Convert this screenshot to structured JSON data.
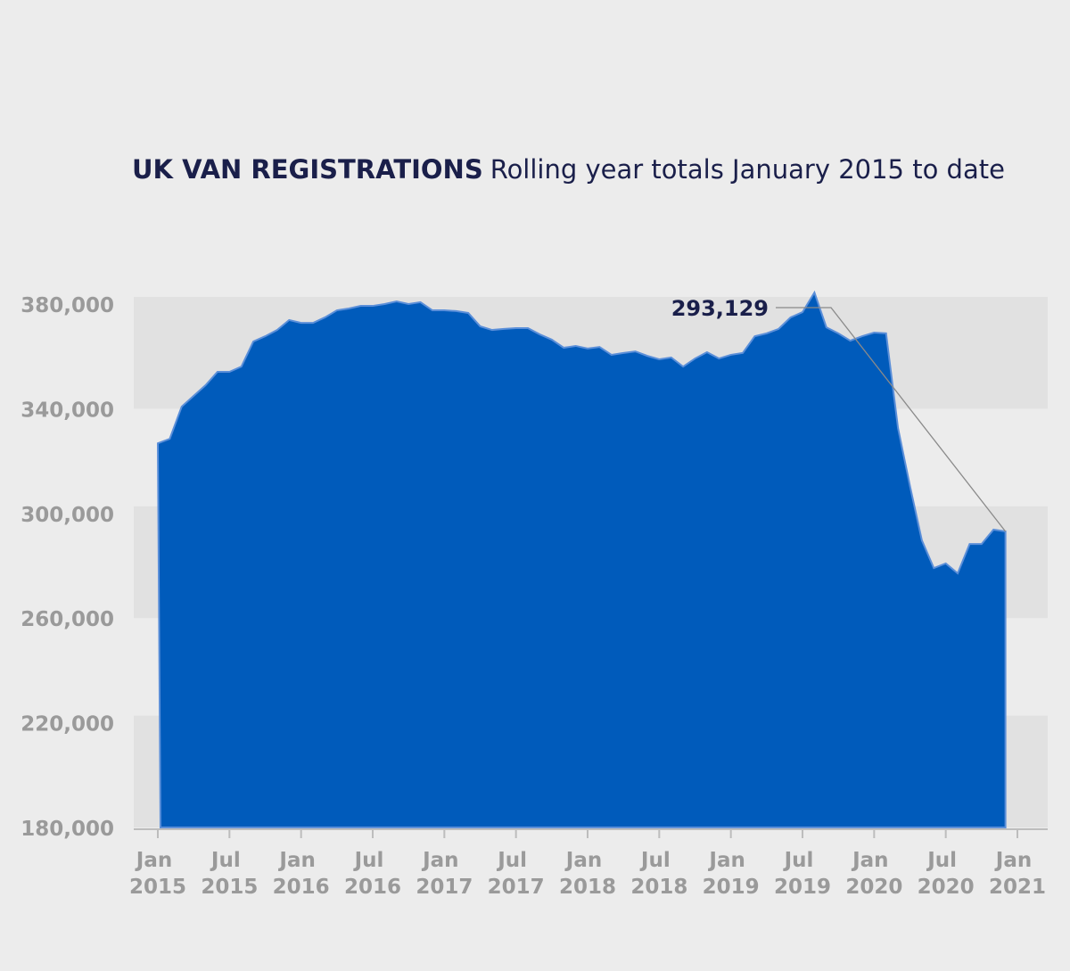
{
  "chart_data": {
    "type": "area",
    "title": "UK VAN REGISTRATIONS",
    "subtitle": "Rolling year totals January 2015 to date",
    "annotation": "293,129",
    "color": "#005bbb",
    "x": [
      "2015-01",
      "2015-02",
      "2015-03",
      "2015-04",
      "2015-05",
      "2015-06",
      "2015-07",
      "2015-08",
      "2015-09",
      "2015-10",
      "2015-11",
      "2015-12",
      "2016-01",
      "2016-02",
      "2016-03",
      "2016-04",
      "2016-05",
      "2016-06",
      "2016-07",
      "2016-08",
      "2016-09",
      "2016-10",
      "2016-11",
      "2016-12",
      "2017-01",
      "2017-02",
      "2017-03",
      "2017-04",
      "2017-05",
      "2017-06",
      "2017-07",
      "2017-08",
      "2017-09",
      "2017-10",
      "2017-11",
      "2017-12",
      "2018-01",
      "2018-02",
      "2018-03",
      "2018-04",
      "2018-05",
      "2018-06",
      "2018-07",
      "2018-08",
      "2018-09",
      "2018-10",
      "2018-11",
      "2018-12",
      "2019-01",
      "2019-02",
      "2019-03",
      "2019-04",
      "2019-05",
      "2019-06",
      "2019-07",
      "2019-08",
      "2019-09",
      "2019-10",
      "2019-11",
      "2019-12",
      "2020-01",
      "2020-02",
      "2020-03",
      "2020-04",
      "2020-05",
      "2020-06",
      "2020-07",
      "2020-08",
      "2020-09",
      "2020-10",
      "2020-11",
      "2020-12"
    ],
    "values": [
      326800,
      328500,
      340800,
      344900,
      349000,
      354100,
      354100,
      356100,
      365700,
      367700,
      370100,
      373900,
      372800,
      372800,
      374900,
      377600,
      378300,
      379300,
      379300,
      380000,
      381000,
      380000,
      380700,
      377600,
      377600,
      377300,
      376600,
      371500,
      370100,
      370500,
      370800,
      370800,
      368400,
      366400,
      363300,
      364000,
      363000,
      363600,
      360600,
      361300,
      361900,
      360200,
      358900,
      359600,
      356100,
      359200,
      361600,
      359200,
      360600,
      361300,
      367700,
      368800,
      370500,
      374900,
      376900,
      384400,
      371100,
      368800,
      366000,
      367700,
      369100,
      368800,
      332600,
      310500,
      289700,
      279100,
      280900,
      277100,
      288300,
      288300,
      293800,
      293129
    ],
    "xlim": [
      "2015-01",
      "2021-01"
    ],
    "xticks": [
      {
        "value": "2015-01",
        "label": "Jan 2015"
      },
      {
        "value": "2015-07",
        "label": "Jul 2015"
      },
      {
        "value": "2016-01",
        "label": "Jan 2016"
      },
      {
        "value": "2016-07",
        "label": "Jul 2016"
      },
      {
        "value": "2017-01",
        "label": "Jan 2017"
      },
      {
        "value": "2017-07",
        "label": "Jul 2017"
      },
      {
        "value": "2018-01",
        "label": "Jan 2018"
      },
      {
        "value": "2018-07",
        "label": "Jul 2018"
      },
      {
        "value": "2019-01",
        "label": "Jan 2019"
      },
      {
        "value": "2019-07",
        "label": "Jul 2019"
      },
      {
        "value": "2020-01",
        "label": "Jan 2020"
      },
      {
        "value": "2020-07",
        "label": "Jul 2020"
      },
      {
        "value": "2021-01",
        "label": "Jan 2021"
      }
    ],
    "ylim": [
      180000,
      380000
    ],
    "yticks": [
      {
        "value": 180000,
        "label": "180,000"
      },
      {
        "value": 220000,
        "label": "220,000"
      },
      {
        "value": 260000,
        "label": "260,000"
      },
      {
        "value": 300000,
        "label": "300,000"
      },
      {
        "value": 340000,
        "label": "340,000"
      },
      {
        "value": 380000,
        "label": "380,000"
      }
    ],
    "bands": true
  }
}
